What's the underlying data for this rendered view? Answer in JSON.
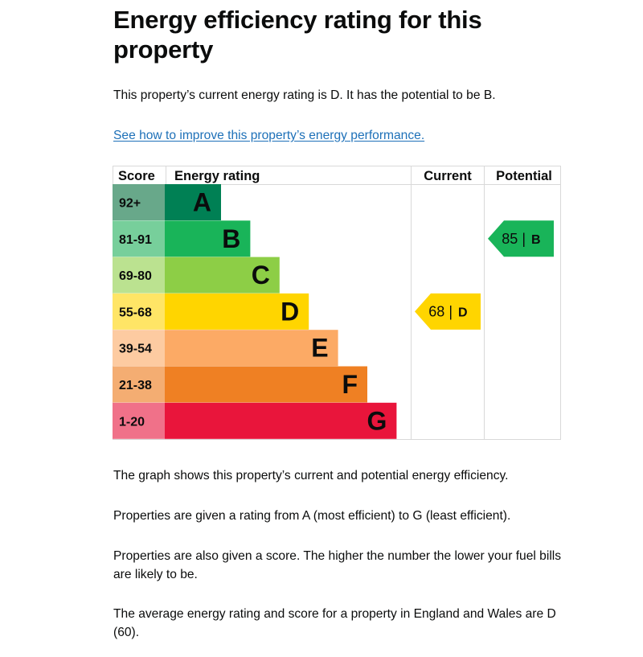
{
  "page": {
    "title": "Energy efficiency rating for this property",
    "intro": "This property’s current energy rating is D. It has the potential to be B.",
    "improve_link": "See how to improve this property’s energy performance.",
    "para_graph": "The graph shows this property’s current and potential energy efficiency.",
    "para_ratings": "Properties are given a rating from A (most efficient) to G (least efficient).",
    "para_score": "Properties are also given a score. The higher the number the lower your fuel bills are likely to be.",
    "para_average": "The average energy rating and score for a property in England and Wales are D (60)."
  },
  "chart_data": {
    "type": "bar",
    "title": "Energy efficiency rating",
    "headers": {
      "score": "Score",
      "rating": "Energy rating",
      "current": "Current",
      "potential": "Potential"
    },
    "bands": [
      {
        "letter": "A",
        "range": "92+",
        "color": "#008054",
        "score_bg": "#68a88a"
      },
      {
        "letter": "B",
        "range": "81-91",
        "color": "#19b459",
        "score_bg": "#77cf9b"
      },
      {
        "letter": "C",
        "range": "69-80",
        "color": "#8dce46",
        "score_bg": "#bbe290"
      },
      {
        "letter": "D",
        "range": "55-68",
        "color": "#ffd500",
        "score_bg": "#ffe566"
      },
      {
        "letter": "E",
        "range": "39-54",
        "color": "#fcaa65",
        "score_bg": "#fdcba1"
      },
      {
        "letter": "F",
        "range": "21-38",
        "color": "#ef8023",
        "score_bg": "#f4ad72"
      },
      {
        "letter": "G",
        "range": "1-20",
        "color": "#e9153b",
        "score_bg": "#f07189"
      }
    ],
    "current": {
      "score": 68,
      "band": "D",
      "label": "68 |",
      "letter": "D"
    },
    "potential": {
      "score": 85,
      "band": "B",
      "label": "85 |",
      "letter": "B"
    }
  }
}
